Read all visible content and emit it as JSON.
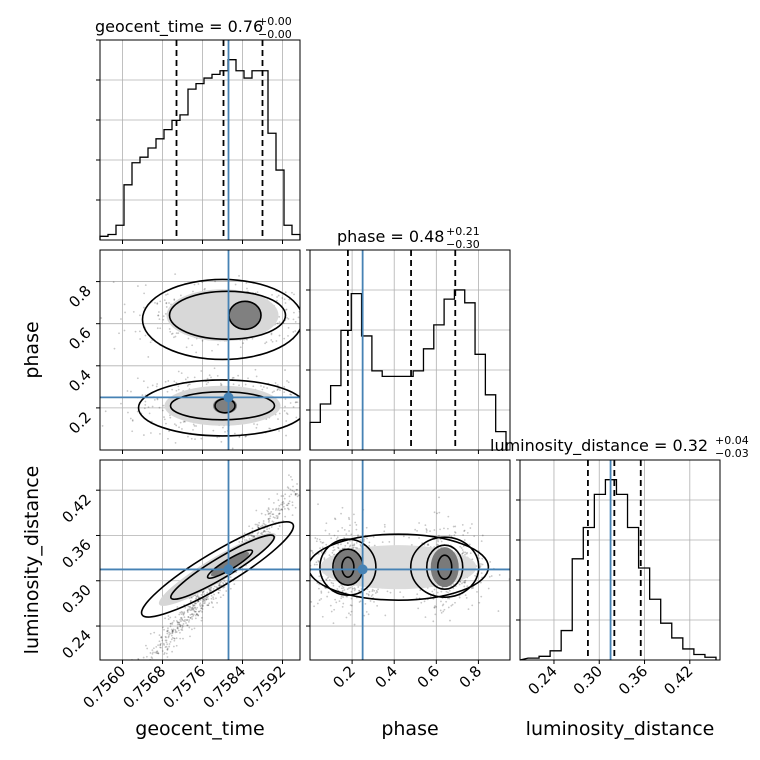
{
  "chart_data": {
    "type": "corner",
    "parameters": [
      "geocent_time",
      "phase",
      "luminosity_distance"
    ],
    "truths": {
      "geocent_time": 0.75812,
      "phase": 0.25,
      "luminosity_distance": 0.315
    },
    "titles": [
      {
        "name": "geocent_time",
        "value": "0.76",
        "plus": "+0.00",
        "minus": "−0.00"
      },
      {
        "name": "phase",
        "value": "0.48",
        "plus": "+0.21",
        "minus": "−0.30"
      },
      {
        "name": "luminosity_distance",
        "value": "0.32",
        "plus": "+0.04",
        "minus": "−0.03"
      }
    ],
    "axis_labels": {
      "x": [
        "geocent_time",
        "phase",
        "luminosity_distance"
      ],
      "y": [
        "phase",
        "luminosity_distance"
      ]
    },
    "ranges": {
      "geocent_time": [
        0.75555,
        0.75955
      ],
      "phase": [
        0.0,
        0.95
      ],
      "luminosity_distance": [
        0.195,
        0.46
      ]
    },
    "ticks": {
      "geocent_time": [
        "0.7560",
        "0.7568",
        "0.7576",
        "0.7584",
        "0.7592"
      ],
      "phase": [
        "0.2",
        "0.4",
        "0.6",
        "0.8"
      ],
      "luminosity_distance": [
        "0.24",
        "0.30",
        "0.36",
        "0.42"
      ]
    },
    "quantiles": {
      "geocent_time": [
        0.75708,
        0.75802,
        0.7588
      ],
      "phase": [
        0.18,
        0.48,
        0.69
      ],
      "luminosity_distance": [
        0.285,
        0.32,
        0.355
      ]
    },
    "histograms": {
      "geocent_time": {
        "counts": [
          0.02,
          0.03,
          0.08,
          0.3,
          0.42,
          0.45,
          0.5,
          0.55,
          0.6,
          0.65,
          0.68,
          0.82,
          0.85,
          0.88,
          0.9,
          0.92,
          0.98,
          0.92,
          0.88,
          0.92,
          0.92,
          0.58,
          0.38,
          0.08,
          0.03
        ]
      },
      "phase": {
        "counts": [
          0.15,
          0.25,
          0.35,
          0.65,
          0.85,
          0.62,
          0.43,
          0.4,
          0.4,
          0.4,
          0.43,
          0.55,
          0.68,
          0.82,
          0.87,
          0.8,
          0.52,
          0.3,
          0.1
        ]
      },
      "luminosity_distance": {
        "counts": [
          0.01,
          0.02,
          0.05,
          0.16,
          0.55,
          0.72,
          0.9,
          0.98,
          0.9,
          0.72,
          0.5,
          0.33,
          0.2,
          0.12,
          0.06,
          0.03,
          0.015
        ]
      }
    },
    "grid": true
  }
}
